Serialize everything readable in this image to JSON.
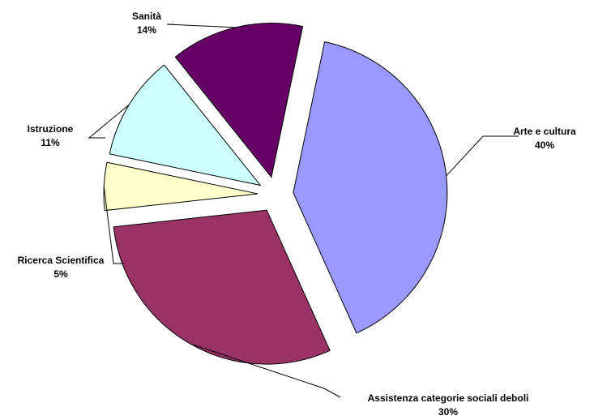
{
  "chart_data": {
    "type": "pie",
    "title": "",
    "exploded": true,
    "slices": [
      {
        "label": "Arte e cultura",
        "value": 40,
        "value_label": "40%",
        "color": "#9999FF"
      },
      {
        "label": "Assistenza categorie sociali deboli",
        "value": 30,
        "value_label": "30%",
        "color": "#993366"
      },
      {
        "label": "Ricerca Scientifica",
        "value": 5,
        "value_label": "5%",
        "color": "#FFFFCC"
      },
      {
        "label": "Istruzione",
        "value": 11,
        "value_label": "11%",
        "color": "#CCFFFF"
      },
      {
        "label": "Sanità",
        "value": 14,
        "value_label": "14%",
        "color": "#660066"
      }
    ]
  }
}
